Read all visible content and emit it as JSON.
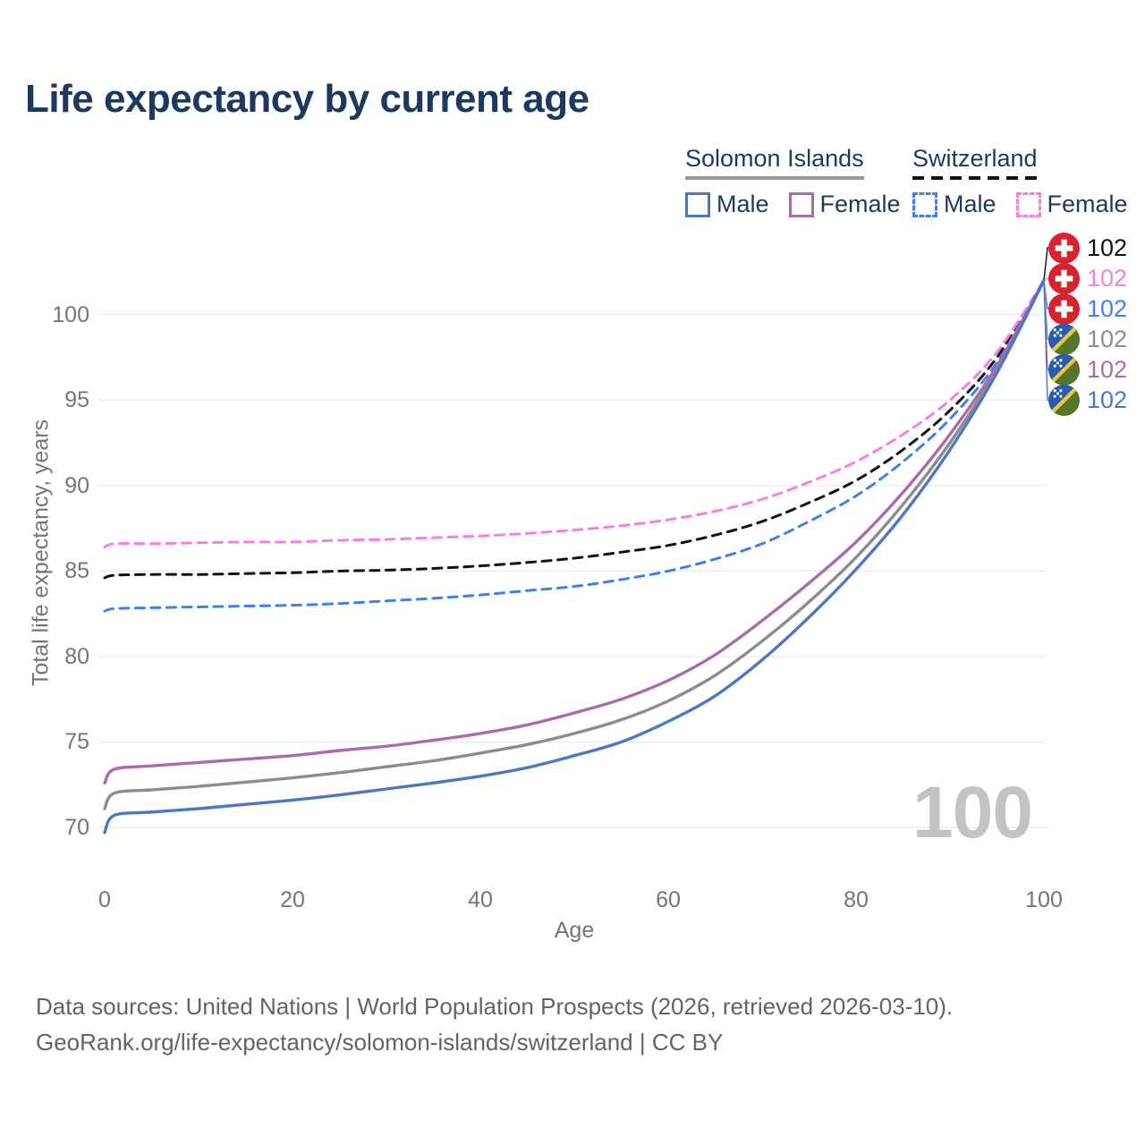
{
  "title": "Life expectancy by current age",
  "watermark": "100",
  "legend": {
    "groups": [
      {
        "name": "Solomon Islands",
        "line_style": "solid",
        "line_color": "#999999",
        "items": [
          {
            "label": "Male",
            "color": "#4a78c2",
            "style": "solid"
          },
          {
            "label": "Female",
            "color": "#a96bac",
            "style": "solid"
          }
        ]
      },
      {
        "name": "Switzerland",
        "line_style": "dashed",
        "line_color": "#111111",
        "items": [
          {
            "label": "Male",
            "color": "#3d80f0",
            "style": "dashed"
          },
          {
            "label": "Female",
            "color": "#f97ee3",
            "style": "dashed"
          }
        ]
      }
    ]
  },
  "end_labels": [
    {
      "flag": "switzerland",
      "text": "102",
      "color": "#111111"
    },
    {
      "flag": "switzerland",
      "text": "102",
      "color": "#f97ee3"
    },
    {
      "flag": "switzerland",
      "text": "102",
      "color": "#3d80f0"
    },
    {
      "flag": "solomon-islands",
      "text": "102",
      "color": "#8c8c8c"
    },
    {
      "flag": "solomon-islands",
      "text": "102",
      "color": "#a96bac"
    },
    {
      "flag": "solomon-islands",
      "text": "102",
      "color": "#4a78c2"
    }
  ],
  "chart_data": {
    "type": "line",
    "title": "Life expectancy by current age",
    "xlabel": "Age",
    "ylabel": "Total life expectancy, years",
    "x_ticks": [
      0,
      20,
      40,
      60,
      80,
      100
    ],
    "y_ticks": [
      70,
      75,
      80,
      85,
      90,
      95,
      100
    ],
    "xlim": [
      0,
      100
    ],
    "ylim": [
      69,
      103
    ],
    "grid": "horizontal",
    "legend_position": "top-right",
    "ages": [
      0,
      1,
      5,
      10,
      15,
      20,
      25,
      30,
      35,
      40,
      45,
      50,
      55,
      60,
      65,
      70,
      75,
      80,
      85,
      90,
      95,
      100
    ],
    "series": [
      {
        "name": "Switzerland Total",
        "country": "Switzerland",
        "sex": "All",
        "style": "dashed",
        "color": "#111111",
        "values": [
          84.6,
          84.75,
          84.8,
          84.8,
          84.85,
          84.9,
          85.0,
          85.05,
          85.15,
          85.3,
          85.5,
          85.75,
          86.1,
          86.5,
          87.1,
          87.9,
          89.0,
          90.3,
          92.1,
          94.4,
          97.5,
          102
        ]
      },
      {
        "name": "Switzerland Female",
        "country": "Switzerland",
        "sex": "Female",
        "style": "dashed",
        "color": "#f97ee3",
        "values": [
          86.4,
          86.6,
          86.6,
          86.65,
          86.7,
          86.7,
          86.8,
          86.85,
          86.95,
          87.05,
          87.2,
          87.4,
          87.65,
          88.0,
          88.5,
          89.2,
          90.2,
          91.4,
          93.0,
          95.0,
          97.8,
          102
        ]
      },
      {
        "name": "Switzerland Male",
        "country": "Switzerland",
        "sex": "Male",
        "style": "dashed",
        "color": "#3d80f0",
        "values": [
          82.65,
          82.8,
          82.85,
          82.9,
          82.95,
          83.0,
          83.1,
          83.25,
          83.4,
          83.6,
          83.85,
          84.1,
          84.5,
          85.0,
          85.7,
          86.6,
          87.9,
          89.4,
          91.4,
          93.9,
          97.2,
          102
        ]
      },
      {
        "name": "Solomon Islands Total",
        "country": "Solomon Islands",
        "sex": "All",
        "style": "solid",
        "color": "#8c8c8c",
        "values": [
          71.1,
          72.0,
          72.2,
          72.4,
          72.65,
          72.9,
          73.2,
          73.55,
          73.9,
          74.35,
          74.85,
          75.5,
          76.3,
          77.4,
          78.9,
          80.9,
          83.2,
          85.8,
          88.9,
          92.5,
          96.8,
          102
        ]
      },
      {
        "name": "Solomon Islands Female",
        "country": "Solomon Islands",
        "sex": "Female",
        "style": "solid",
        "color": "#a96bac",
        "values": [
          72.6,
          73.4,
          73.6,
          73.8,
          74.0,
          74.2,
          74.5,
          74.75,
          75.1,
          75.5,
          76.0,
          76.7,
          77.5,
          78.6,
          80.1,
          82.1,
          84.3,
          86.7,
          89.6,
          93.0,
          97.0,
          102
        ]
      },
      {
        "name": "Solomon Islands Male",
        "country": "Solomon Islands",
        "sex": "Male",
        "style": "solid",
        "color": "#4a78c2",
        "values": [
          69.7,
          70.7,
          70.9,
          71.1,
          71.35,
          71.6,
          71.9,
          72.25,
          72.6,
          73.0,
          73.5,
          74.2,
          75.0,
          76.2,
          77.7,
          79.8,
          82.3,
          85.1,
          88.3,
          92.1,
          96.6,
          102
        ]
      }
    ]
  },
  "footer": {
    "line1": "Data sources: United Nations | World Population Prospects (2026, retrieved 2026-03-10).",
    "line2": "GeoRank.org/life-expectancy/solomon-islands/switzerland | CC BY"
  }
}
